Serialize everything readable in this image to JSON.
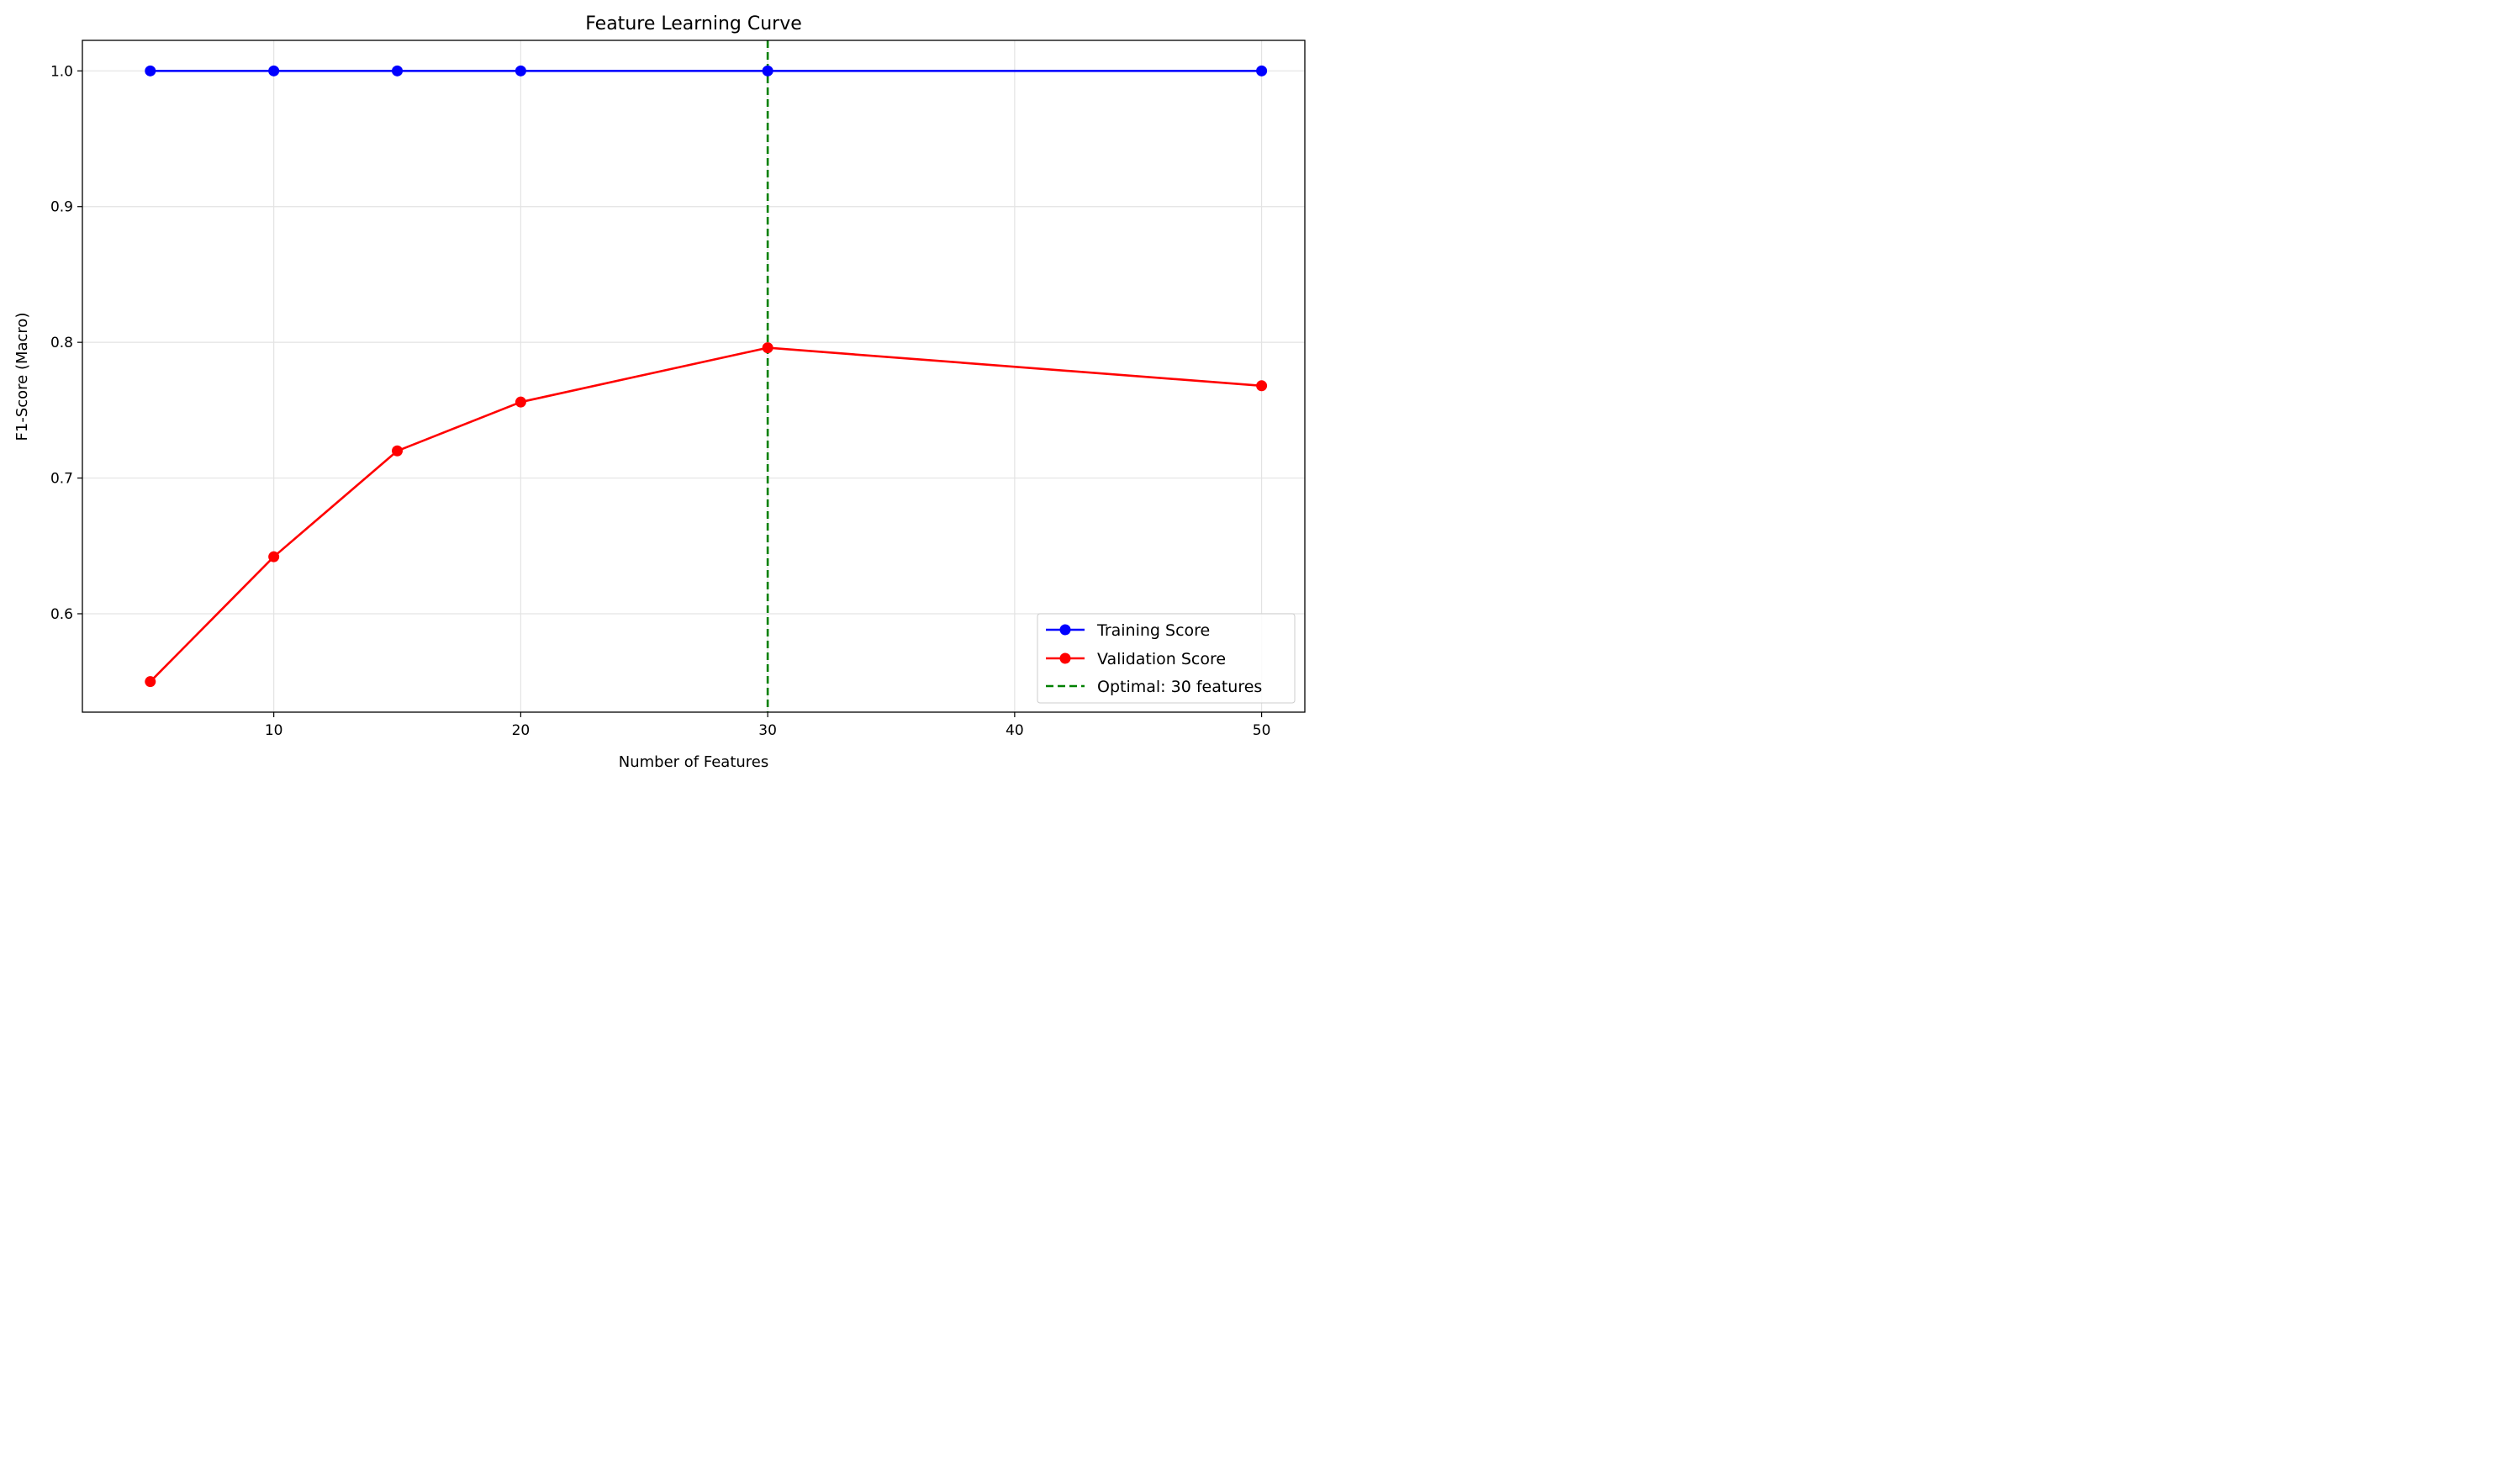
{
  "chart_data": {
    "type": "line",
    "title": "Feature Learning Curve",
    "xlabel": "Number of Features",
    "ylabel": "F1-Score (Macro)",
    "xlim": [
      2.25,
      51.75
    ],
    "ylim": [
      0.5275,
      1.0225
    ],
    "xticks": [
      10,
      20,
      30,
      40,
      50
    ],
    "yticks": [
      0.6,
      0.7,
      0.8,
      0.9,
      1.0
    ],
    "xtick_labels": [
      "10",
      "20",
      "30",
      "40",
      "50"
    ],
    "ytick_labels": [
      "0.6",
      "0.7",
      "0.8",
      "0.9",
      "1.0"
    ],
    "grid": true,
    "legend_position": "bottom-right",
    "x": [
      5,
      10,
      15,
      20,
      30,
      50
    ],
    "series": [
      {
        "name": "Training Score",
        "color": "#0000ff",
        "marker": "circle",
        "values": [
          1.0,
          1.0,
          1.0,
          1.0,
          1.0,
          1.0
        ]
      },
      {
        "name": "Validation Score",
        "color": "#ff0000",
        "marker": "circle",
        "values": [
          0.55,
          0.642,
          0.72,
          0.756,
          0.796,
          0.768
        ]
      }
    ],
    "reference_lines": [
      {
        "name": "Optimal: 30 features",
        "orientation": "vertical",
        "x": 30,
        "color": "#008000",
        "style": "dashed"
      }
    ]
  }
}
